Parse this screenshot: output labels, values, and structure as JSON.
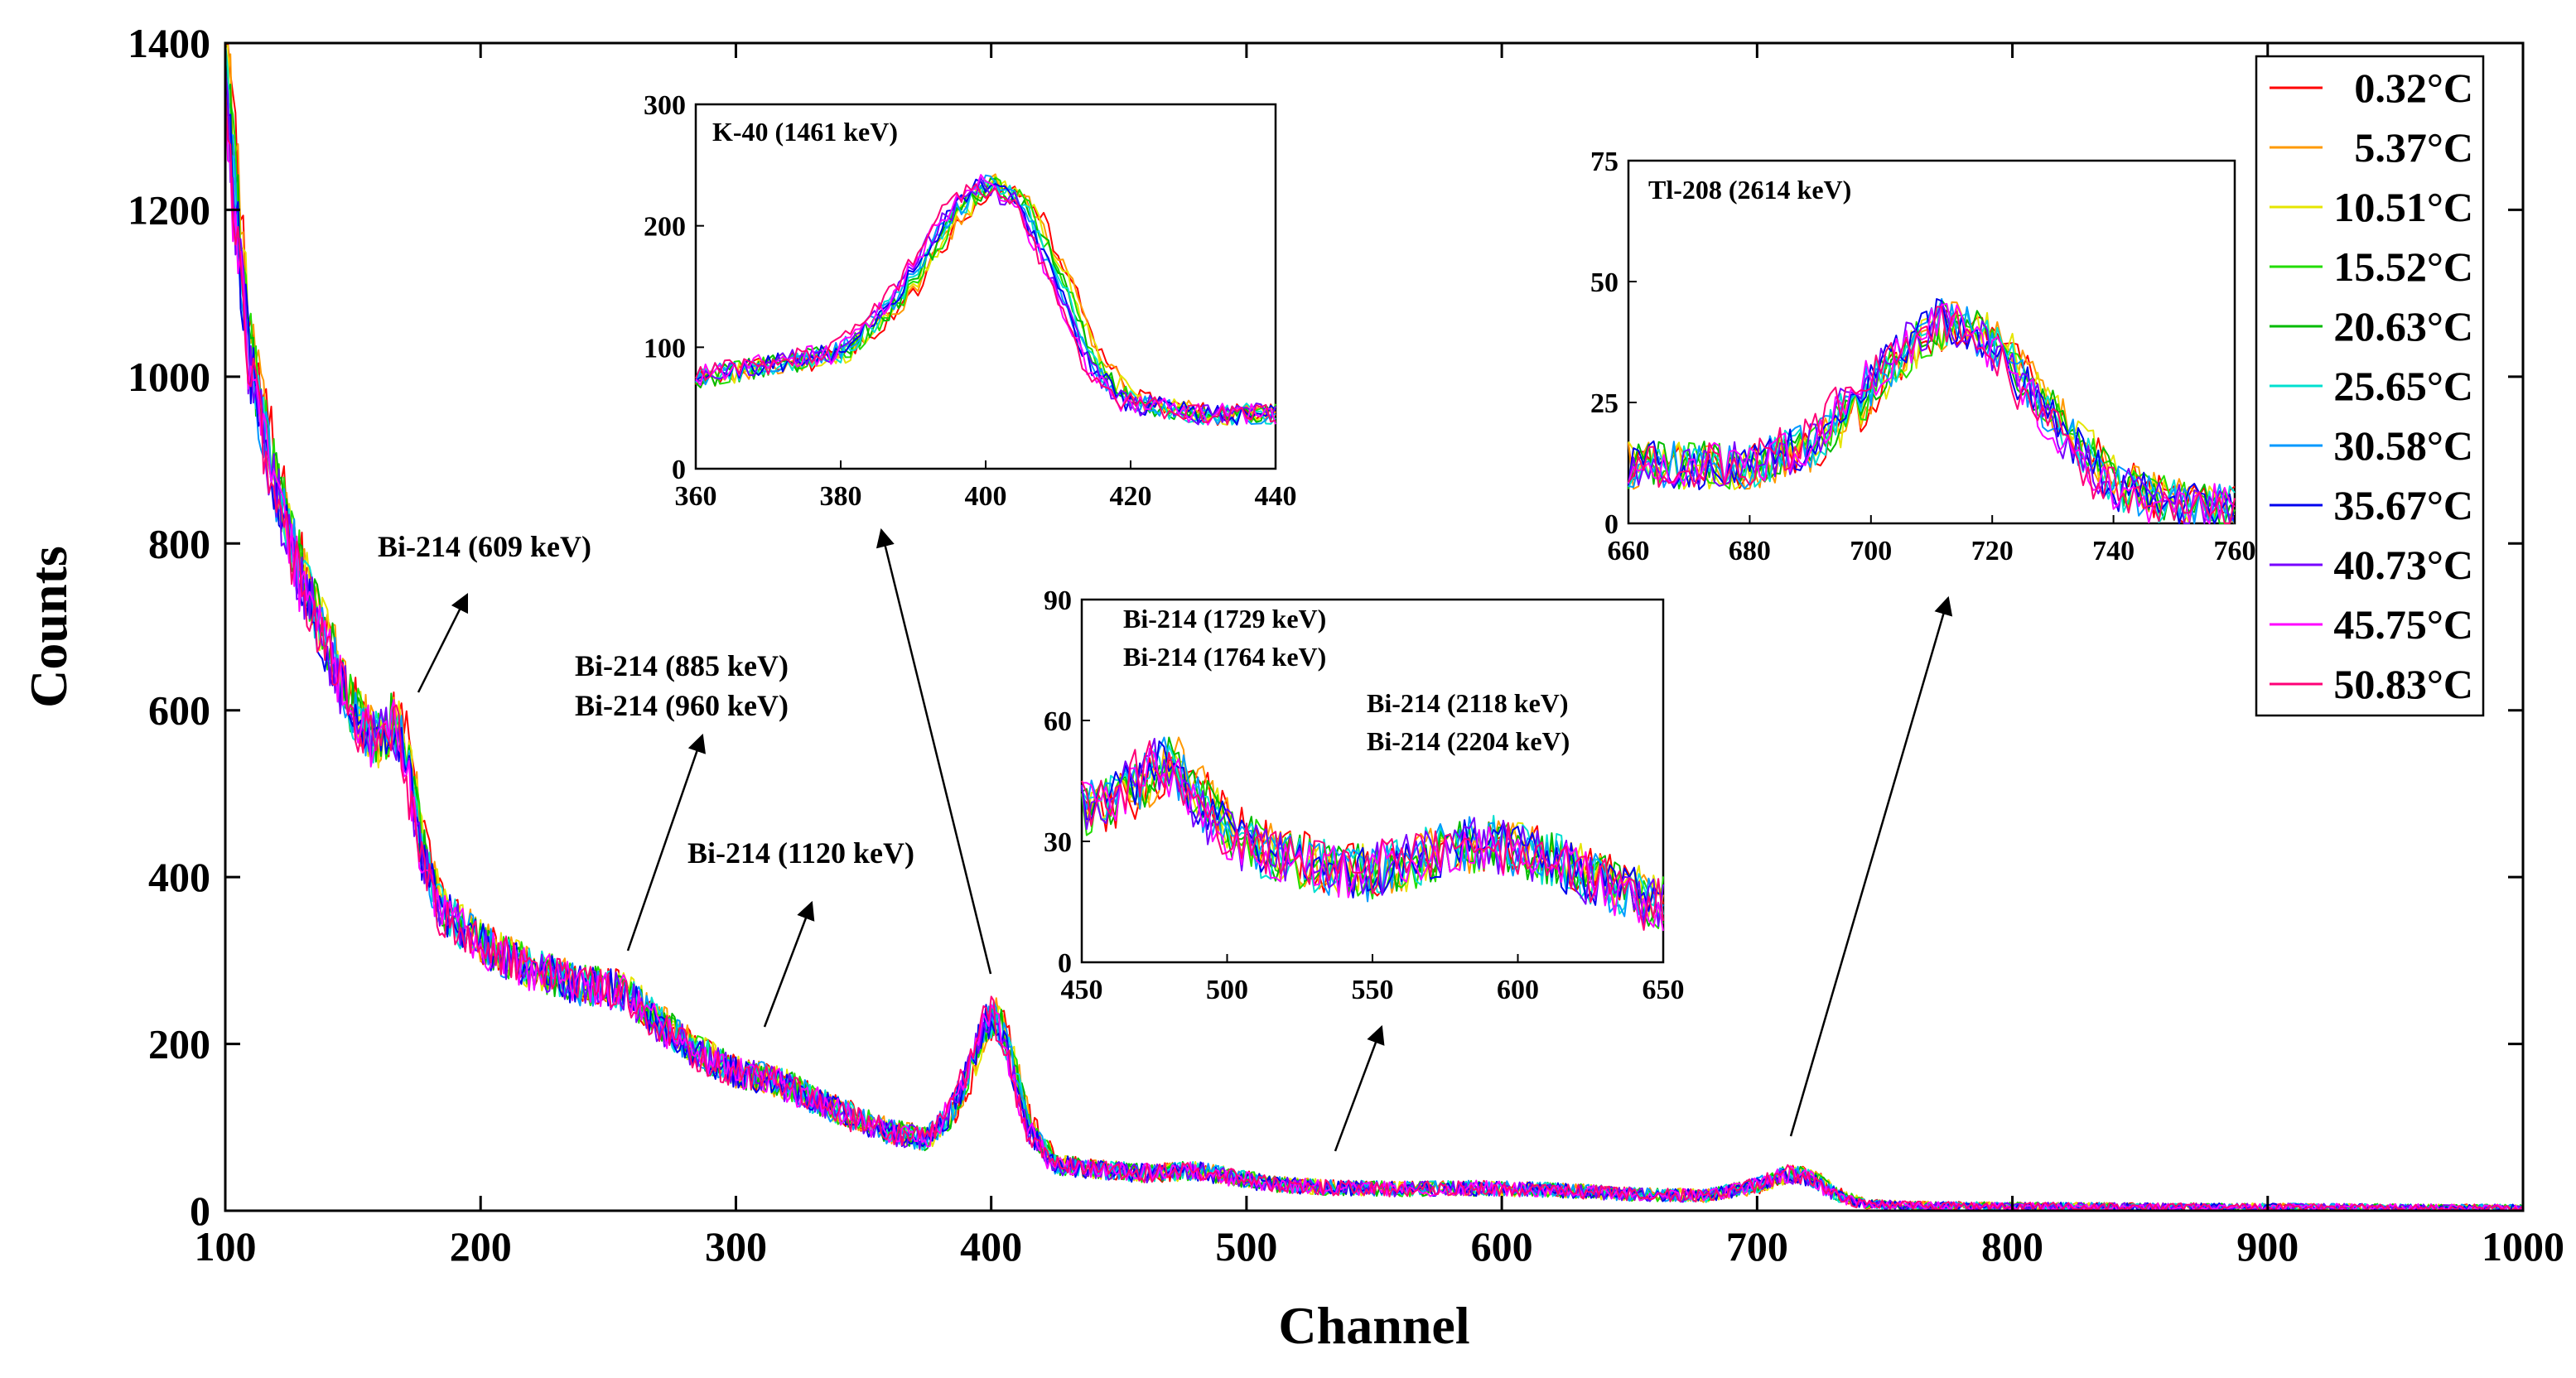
{
  "chart_data": {
    "type": "line",
    "xlabel": "Channel",
    "ylabel": "Counts",
    "xlim": [
      100,
      1000
    ],
    "ylim": [
      0,
      1400
    ],
    "xticks": [
      100,
      200,
      300,
      400,
      500,
      600,
      700,
      800,
      900,
      1000
    ],
    "yticks": [
      0,
      200,
      400,
      600,
      800,
      1000,
      1200,
      1400
    ],
    "grid": false,
    "legend_position": "top-right",
    "series": [
      {
        "name": "0.32°C",
        "color": "#ff0000",
        "shift": 1.5
      },
      {
        "name": "5.37°C",
        "color": "#ff9900",
        "shift": 1.2
      },
      {
        "name": "10.51°C",
        "color": "#e5e500",
        "shift": 0.9
      },
      {
        "name": "15.52°C",
        "color": "#22dd00",
        "shift": 0.6
      },
      {
        "name": "20.63°C",
        "color": "#00bb00",
        "shift": 0.3
      },
      {
        "name": "25.65°C",
        "color": "#00e0d0",
        "shift": 0.0
      },
      {
        "name": "30.58°C",
        "color": "#0099ff",
        "shift": -0.3
      },
      {
        "name": "35.67°C",
        "color": "#0000ee",
        "shift": -0.6
      },
      {
        "name": "40.73°C",
        "color": "#7700ff",
        "shift": -0.9
      },
      {
        "name": "45.75°C",
        "color": "#ff00ff",
        "shift": -1.2
      },
      {
        "name": "50.83°C",
        "color": "#ff0077",
        "shift": -1.5
      }
    ],
    "profile": {
      "x": [
        100,
        105,
        110,
        120,
        130,
        140,
        150,
        160,
        165,
        170,
        178,
        185,
        200,
        220,
        240,
        255,
        270,
        285,
        300,
        310,
        320,
        340,
        360,
        375,
        385,
        392,
        398,
        402,
        408,
        415,
        425,
        440,
        460,
        480,
        495,
        510,
        530,
        560,
        590,
        620,
        650,
        680,
        700,
        712,
        722,
        732,
        742,
        760,
        800,
        900,
        1000
      ],
      "y": [
        1380,
        1180,
        1020,
        870,
        760,
        680,
        600,
        560,
        590,
        565,
        420,
        360,
        320,
        290,
        270,
        265,
        225,
        190,
        165,
        160,
        150,
        120,
        95,
        85,
        120,
        170,
        225,
        235,
        180,
        100,
        55,
        50,
        45,
        48,
        40,
        32,
        28,
        26,
        27,
        25,
        20,
        18,
        30,
        45,
        38,
        18,
        8,
        6,
        5,
        4,
        3
      ]
    },
    "annotations": [
      {
        "text": "Bi-214 (609 keV)"
      },
      {
        "text": "Bi-214 (885 keV)"
      },
      {
        "text": "Bi-214 (960 keV)"
      },
      {
        "text": "Bi-214 (1120 keV)"
      }
    ],
    "insets": [
      {
        "title": "K-40 (1461 keV)",
        "xlim": [
          360,
          440
        ],
        "ylim": [
          0,
          300
        ],
        "xticks": [
          360,
          380,
          400,
          420,
          440
        ],
        "yticks": [
          0,
          100,
          200,
          300
        ],
        "labels": [
          "K-40 (1461 keV)"
        ],
        "x": [
          360,
          370,
          380,
          388,
          395,
          400,
          405,
          410,
          415,
          420,
          430,
          440
        ],
        "y": [
          75,
          85,
          95,
          140,
          205,
          235,
          220,
          160,
          85,
          55,
          45,
          45
        ]
      },
      {
        "title": "Tl-208 (2614 keV)",
        "xlim": [
          660,
          760
        ],
        "ylim": [
          0,
          75
        ],
        "xticks": [
          660,
          680,
          700,
          720,
          740,
          760
        ],
        "yticks": [
          0,
          25,
          50,
          75
        ],
        "labels": [
          "Tl-208 (2614 keV)"
        ],
        "x": [
          660,
          670,
          680,
          690,
          700,
          705,
          712,
          720,
          730,
          740,
          750,
          760
        ],
        "y": [
          12,
          12,
          12,
          16,
          28,
          35,
          42,
          38,
          22,
          8,
          4,
          3
        ]
      },
      {
        "title": "Bi-214 (1729 keV)",
        "xlim": [
          450,
          650
        ],
        "ylim": [
          0,
          90
        ],
        "xticks": [
          450,
          500,
          550,
          600,
          650
        ],
        "yticks": [
          0,
          30,
          60,
          90
        ],
        "labels": [
          "Bi-214 (1729 keV)",
          "Bi-214 (1764 keV)",
          "Bi-214 (2118 keV)",
          "Bi-214 (2204 keV)"
        ],
        "x": [
          450,
          465,
          480,
          495,
          510,
          530,
          550,
          570,
          590,
          610,
          630,
          650
        ],
        "y": [
          38,
          42,
          50,
          36,
          28,
          24,
          22,
          27,
          30,
          26,
          20,
          14
        ]
      }
    ]
  }
}
